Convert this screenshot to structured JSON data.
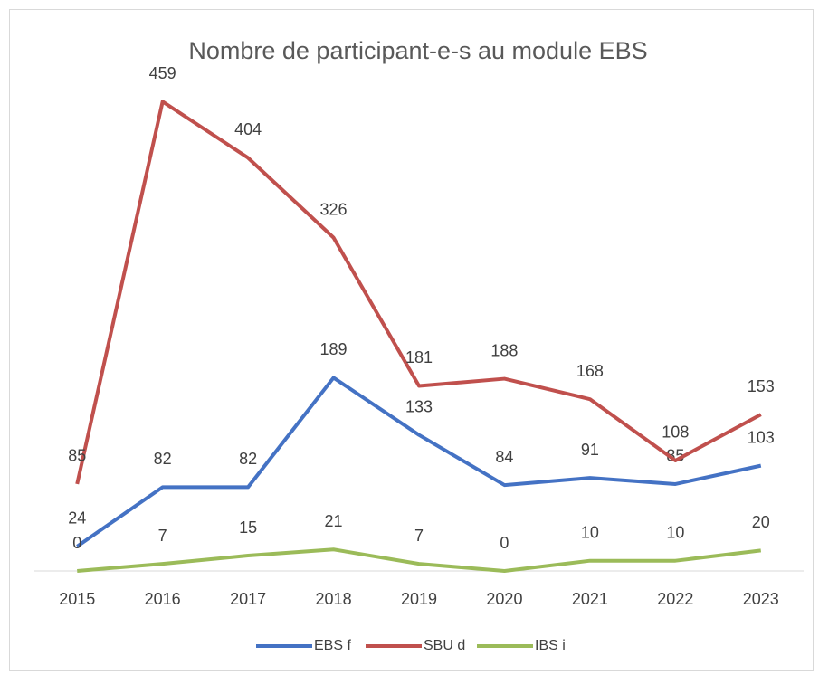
{
  "chart_data": {
    "type": "line",
    "title": "Nombre de participant-e-s au module EBS",
    "categories": [
      "2015",
      "2016",
      "2017",
      "2018",
      "2019",
      "2020",
      "2021",
      "2022",
      "2023"
    ],
    "series": [
      {
        "name": "EBS f",
        "color": "#4472c4",
        "values": [
          24,
          82,
          82,
          189,
          133,
          84,
          91,
          85,
          103
        ]
      },
      {
        "name": "SBU d",
        "color": "#c0504d",
        "values": [
          85,
          459,
          404,
          326,
          181,
          188,
          168,
          108,
          153
        ]
      },
      {
        "name": "IBS i",
        "color": "#9bbb59",
        "values": [
          0,
          7,
          15,
          21,
          7,
          0,
          10,
          10,
          20
        ]
      }
    ],
    "ylim": [
      0,
      500
    ],
    "legend": "bottom"
  }
}
